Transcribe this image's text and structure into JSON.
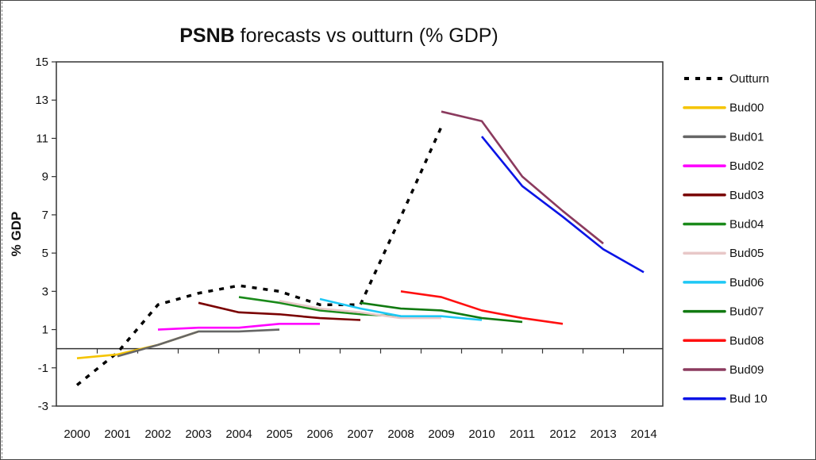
{
  "chart_data": {
    "type": "line",
    "title_bold": "PSNB",
    "title_rest": " forecasts vs outturn (% GDP)",
    "xlabel": "",
    "ylabel": "% GDP",
    "ylim": [
      -3,
      15
    ],
    "yticks": [
      -3,
      -1,
      1,
      3,
      5,
      7,
      9,
      11,
      13,
      15
    ],
    "x": [
      2000,
      2001,
      2002,
      2003,
      2004,
      2005,
      2006,
      2007,
      2008,
      2009,
      2010,
      2011,
      2012,
      2013,
      2014
    ],
    "legend_position": "right",
    "grid": false,
    "series": [
      {
        "name": "Outturn",
        "color": "#000000",
        "dashed": true,
        "x": [
          2000,
          2001,
          2002,
          2003,
          2004,
          2005,
          2006,
          2007,
          2008,
          2009
        ],
        "values": [
          -1.9,
          -0.2,
          2.3,
          2.9,
          3.3,
          3.0,
          2.3,
          2.3,
          6.9,
          11.6
        ]
      },
      {
        "name": "Bud00",
        "color": "#F5C400",
        "x": [
          2000,
          2001,
          2002,
          2003
        ],
        "values": [
          -0.5,
          -0.3,
          0.2,
          0.9
        ]
      },
      {
        "name": "Bud01",
        "color": "#666666",
        "x": [
          2001,
          2002,
          2003,
          2004,
          2005
        ],
        "values": [
          -0.4,
          0.2,
          0.9,
          0.9,
          1.0
        ]
      },
      {
        "name": "Bud02",
        "color": "#FF00FF",
        "x": [
          2002,
          2003,
          2004,
          2005,
          2006
        ],
        "values": [
          1.0,
          1.1,
          1.1,
          1.3,
          1.3
        ]
      },
      {
        "name": "Bud03",
        "color": "#7A0000",
        "x": [
          2003,
          2004,
          2005,
          2006,
          2007
        ],
        "values": [
          2.4,
          1.9,
          1.8,
          1.6,
          1.5
        ]
      },
      {
        "name": "Bud04",
        "color": "#1A8A1A",
        "x": [
          2004,
          2005,
          2006,
          2007,
          2008
        ],
        "values": [
          2.7,
          2.4,
          2.0,
          1.8,
          1.7
        ]
      },
      {
        "name": "Bud05",
        "color": "#E8C8C8",
        "x": [
          2005,
          2006,
          2007,
          2008,
          2009
        ],
        "values": [
          2.5,
          2.1,
          1.9,
          1.6,
          1.6
        ]
      },
      {
        "name": "Bud06",
        "color": "#1EC8F5",
        "x": [
          2006,
          2007,
          2008,
          2009,
          2010
        ],
        "values": [
          2.6,
          2.1,
          1.7,
          1.7,
          1.5
        ]
      },
      {
        "name": "Bud07",
        "color": "#117A11",
        "x": [
          2007,
          2008,
          2009,
          2010,
          2011
        ],
        "values": [
          2.4,
          2.1,
          2.0,
          1.6,
          1.4
        ]
      },
      {
        "name": "Bud08",
        "color": "#FF1010",
        "x": [
          2008,
          2009,
          2010,
          2011,
          2012
        ],
        "values": [
          3.0,
          2.7,
          2.0,
          1.6,
          1.3
        ]
      },
      {
        "name": "Bud09",
        "color": "#8B3A5E",
        "x": [
          2009,
          2010,
          2011,
          2012,
          2013
        ],
        "values": [
          12.4,
          11.9,
          9.0,
          7.2,
          5.5
        ]
      },
      {
        "name": "Bud 10",
        "color": "#0A14E6",
        "x": [
          2010,
          2011,
          2012,
          2013,
          2014
        ],
        "values": [
          11.1,
          8.5,
          6.9,
          5.2,
          4.0
        ]
      }
    ]
  }
}
